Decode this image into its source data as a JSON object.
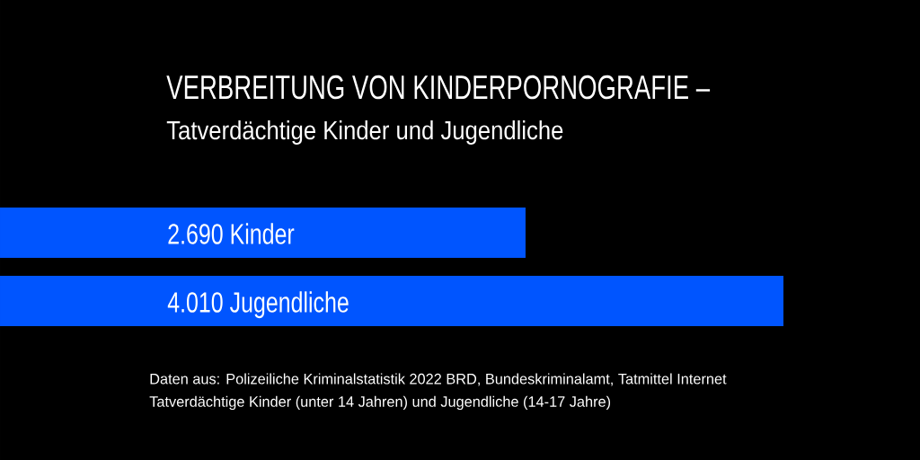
{
  "chart_data": {
    "type": "bar",
    "orientation": "horizontal",
    "title": "VERBREITUNG VON KINDERPORNOGRAFIE –",
    "subtitle": "Tatverdächtige Kinder und Jugendliche",
    "categories": [
      "Kinder",
      "Jugendliche"
    ],
    "values": [
      2690,
      4010
    ],
    "value_labels": [
      "2.690",
      "4.010"
    ],
    "color": "#0055ff",
    "tick_labels": "y",
    "annotations": [
      "Daten aus: Polizeiliche Kriminalstatistik 2022 BRD, Bundeskriminalamt, Tatmittel Internet",
      "Tatverdächtige Kinder (unter 14 Jahren) und Jugendliche (14-17 Jahre)"
    ]
  }
}
